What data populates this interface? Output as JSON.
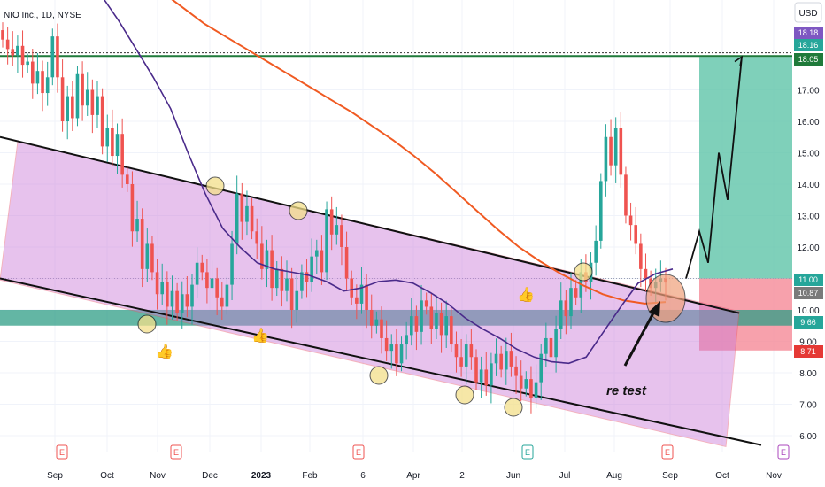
{
  "symbol_label": "NIO Inc., 1D, NYSE",
  "currency": "USD",
  "colors": {
    "candle_up": "#26a69a",
    "candle_down": "#ef5350",
    "ema_fast": "#4a2a8a",
    "ema_slow": "#f05a22",
    "channel_fill": "#cc7ad8",
    "channel_edge": "#e55770",
    "support_band": "#2f9d86",
    "target_zone": "#5fc4a9",
    "stop_zone": "#f58a97",
    "resistance_line": "#1f7a3a",
    "highlight_circle": "#f3e08a"
  },
  "chart_data": {
    "type": "candlestick",
    "title": "",
    "xlabel": "",
    "ylabel": "",
    "x_ticks": [
      "Sep",
      "Oct",
      "Nov",
      "Dec",
      "2023",
      "Feb",
      "6",
      "Apr",
      "2",
      "Jun",
      "Jul",
      "Aug",
      "Sep",
      "Oct",
      "Nov"
    ],
    "y_ticks": [
      6.0,
      7.0,
      8.0,
      9.0,
      10.0,
      11.0,
      12.0,
      13.0,
      14.0,
      15.0,
      16.0,
      17.0
    ],
    "ylim": [
      5.5,
      18.8
    ],
    "price_tags": [
      {
        "value": "18.18",
        "color": "#7e57c2"
      },
      {
        "value": "18.16",
        "color": "#26a69a"
      },
      {
        "value": "18.05",
        "color": "#1f7a3a"
      },
      {
        "value": "11.00",
        "color": "#26a69a"
      },
      {
        "value": "10.87",
        "color": "#7a7a7a"
      },
      {
        "value": "9.66",
        "color": "#26a69a"
      },
      {
        "value": "8.71",
        "color": "#e53935"
      }
    ],
    "resistance_level": 18.05,
    "support_band": [
      9.5,
      10.0
    ],
    "trade_setup": {
      "entry": 11.0,
      "target": 18.05,
      "stop": 8.71
    },
    "channel": {
      "upper_start": 15.5,
      "upper_end": 9.9,
      "lower_start": 11.0,
      "lower_end": 5.7
    },
    "ohlc_close": [
      18.6,
      18.3,
      18.1,
      18.4,
      17.8,
      17.9,
      17.2,
      17.6,
      16.9,
      17.4,
      18.7,
      17.4,
      16.0,
      16.8,
      16.1,
      17.5,
      16.5,
      17.0,
      16.2,
      16.8,
      15.2,
      15.8,
      14.9,
      15.6,
      14.3,
      14.0,
      12.5,
      12.9,
      11.3,
      12.1,
      11.2,
      10.5,
      10.9,
      10.1,
      10.6,
      9.9,
      10.5,
      10.1,
      10.8,
      11.5,
      11.2,
      10.7,
      11.0,
      10.4,
      10.1,
      10.8,
      12.1,
      13.7,
      12.8,
      13.3,
      12.5,
      12.1,
      11.3,
      11.9,
      10.7,
      11.3,
      10.6,
      11.0,
      10.0,
      10.6,
      11.2,
      10.9,
      11.7,
      11.9,
      11.2,
      13.2,
      12.4,
      12.7,
      12.0,
      11.0,
      10.4,
      10.2,
      10.8,
      10.0,
      9.5,
      9.7,
      9.1,
      8.7,
      8.9,
      8.3,
      8.9,
      9.2,
      9.8,
      9.3,
      10.3,
      10.1,
      9.4,
      9.9,
      9.2,
      9.8,
      8.9,
      8.5,
      8.2,
      8.9,
      8.5,
      7.7,
      8.1,
      7.6,
      8.3,
      8.6,
      8.1,
      8.7,
      8.2,
      7.9,
      7.5,
      7.8,
      7.2,
      7.7,
      8.6,
      9.1,
      8.5,
      9.4,
      10.3,
      9.8,
      10.7,
      10.4,
      11.2,
      10.9,
      11.5,
      12.2,
      14.1,
      15.5,
      14.6,
      15.8,
      14.3,
      13.0,
      12.7,
      12.1,
      11.3,
      11.0,
      10.7,
      10.9,
      11.0,
      10.87
    ],
    "ema_fast": [
      20.5,
      20.0,
      19.2,
      18.3,
      17.4,
      16.4,
      15.0,
      13.7,
      12.6,
      12.0,
      11.5,
      11.3,
      11.2,
      11.1,
      10.9,
      10.6,
      10.7,
      10.9,
      10.95,
      10.85,
      10.55,
      10.2,
      9.75,
      9.4,
      9.1,
      8.75,
      8.5,
      8.35,
      8.3,
      8.5,
      9.3,
      10.1,
      10.85,
      11.15,
      11.3
    ],
    "ema_slow": [
      20.6,
      20.1,
      19.6,
      19.1,
      18.7,
      18.3,
      17.9,
      17.5,
      17.1,
      16.7,
      16.3,
      15.85,
      15.4,
      14.9,
      14.35,
      13.75,
      13.15,
      12.55,
      12.0,
      11.55,
      11.15,
      10.8,
      10.5,
      10.3,
      10.2,
      10.25
    ],
    "projection_path": [
      11.0,
      12.5,
      11.5,
      15.0,
      13.5,
      18.05
    ],
    "annotations": [
      "re test"
    ]
  }
}
